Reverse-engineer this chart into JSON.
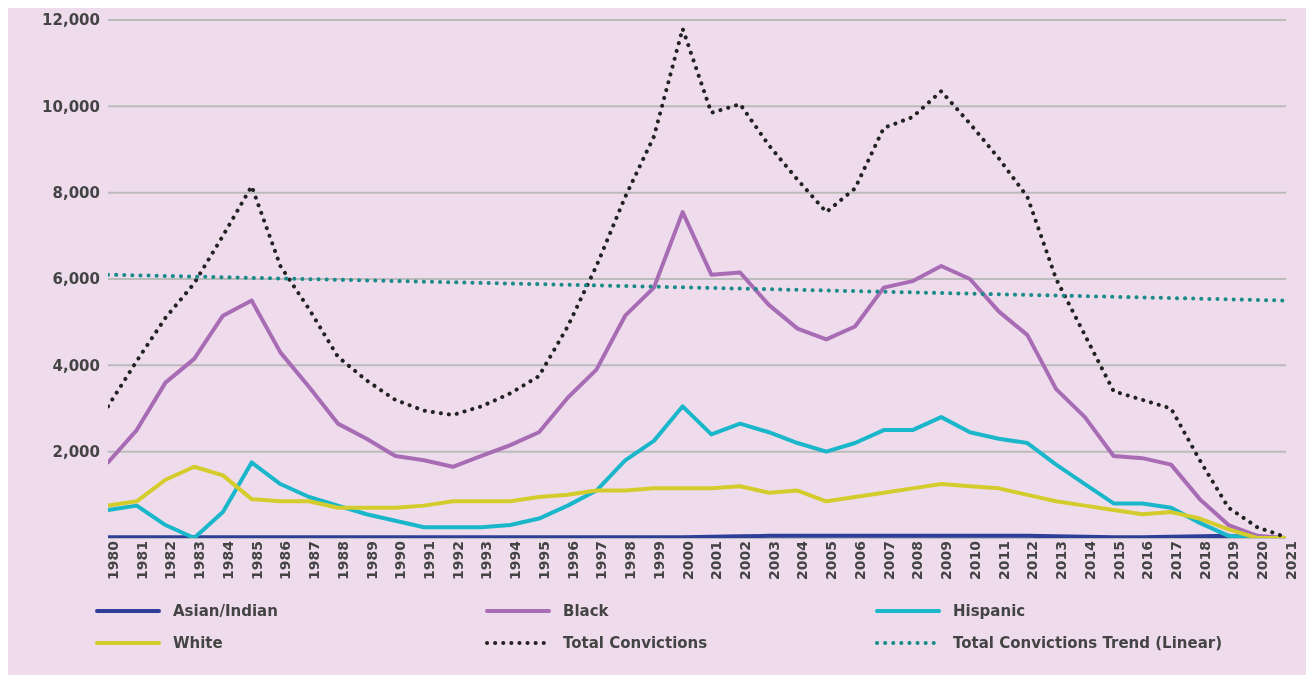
{
  "chart_data": {
    "type": "line",
    "x": [
      1980,
      1981,
      1982,
      1983,
      1984,
      1985,
      1986,
      1987,
      1988,
      1989,
      1990,
      1991,
      1992,
      1993,
      1994,
      1995,
      1996,
      1997,
      1998,
      1999,
      2000,
      2001,
      2002,
      2003,
      2004,
      2005,
      2006,
      2007,
      2008,
      2009,
      2010,
      2011,
      2012,
      2013,
      2014,
      2015,
      2016,
      2017,
      2018,
      2019,
      2020,
      2021
    ],
    "xlim": [
      1980,
      2021
    ],
    "xticks": [
      1980,
      1981,
      1982,
      1983,
      1984,
      1985,
      1986,
      1987,
      1988,
      1989,
      1990,
      1991,
      1992,
      1993,
      1994,
      1995,
      1996,
      1997,
      1998,
      1999,
      2000,
      2001,
      2002,
      2003,
      2004,
      2005,
      2006,
      2007,
      2008,
      2009,
      2010,
      2011,
      2012,
      2013,
      2014,
      2015,
      2016,
      2017,
      2018,
      2019,
      2020,
      2021
    ],
    "ylim": [
      0,
      12000
    ],
    "yticks": [
      {
        "value": 0,
        "label": null
      },
      {
        "value": 2000,
        "label": "2,000"
      },
      {
        "value": 4000,
        "label": "4,000"
      },
      {
        "value": 6000,
        "label": "6,000"
      },
      {
        "value": 8000,
        "label": "8,000"
      },
      {
        "value": 10000,
        "label": "10,000"
      },
      {
        "value": 12000,
        "label": "12,000"
      }
    ],
    "grid": "y",
    "legend": "bottom",
    "marker": "none",
    "series": [
      {
        "name": "Asian/Indian",
        "color": "#2e3f9a",
        "line_style": "solid",
        "values": [
          20,
          20,
          20,
          20,
          20,
          20,
          20,
          20,
          20,
          20,
          20,
          20,
          20,
          20,
          20,
          20,
          20,
          20,
          20,
          20,
          20,
          30,
          40,
          50,
          50,
          50,
          50,
          50,
          50,
          50,
          50,
          50,
          50,
          40,
          30,
          20,
          20,
          30,
          40,
          50,
          0,
          null
        ]
      },
      {
        "name": "Black",
        "color": "#a86cb5",
        "line_style": "solid",
        "values": [
          1750,
          2500,
          3600,
          4150,
          5150,
          5500,
          4300,
          3500,
          2650,
          2300,
          1900,
          1800,
          1650,
          1900,
          2150,
          2450,
          3250,
          3900,
          5150,
          5800,
          7550,
          6100,
          6150,
          5400,
          4850,
          4600,
          4900,
          5800,
          5950,
          6300,
          6000,
          5250,
          4700,
          3450,
          2800,
          1900,
          1850,
          1700,
          900,
          300,
          50,
          0
        ]
      },
      {
        "name": "Hispanic",
        "color": "#1ab6c9",
        "line_style": "solid",
        "values": [
          650,
          750,
          300,
          0,
          600,
          1750,
          1250,
          950,
          750,
          550,
          400,
          250,
          250,
          250,
          300,
          450,
          750,
          1100,
          1800,
          2250,
          3050,
          2400,
          2650,
          2450,
          2200,
          2000,
          2200,
          2500,
          2500,
          2800,
          2450,
          2300,
          2200,
          1700,
          1250,
          800,
          800,
          700,
          350,
          50,
          0,
          null
        ]
      },
      {
        "name": "White",
        "color": "#d4cc2c",
        "line_style": "solid",
        "values": [
          750,
          850,
          1350,
          1650,
          1450,
          900,
          850,
          850,
          700,
          700,
          700,
          750,
          850,
          850,
          850,
          950,
          1000,
          1100,
          1100,
          1150,
          1150,
          1150,
          1200,
          1050,
          1100,
          850,
          950,
          1050,
          1150,
          1250,
          1200,
          1150,
          1000,
          850,
          750,
          650,
          550,
          600,
          450,
          200,
          0,
          0
        ]
      },
      {
        "name": "Total Convictions",
        "color": "#222222",
        "line_style": "dotted",
        "values": [
          3050,
          4100,
          5100,
          5900,
          7000,
          8150,
          6300,
          5300,
          4200,
          3650,
          3200,
          2950,
          2850,
          3050,
          3350,
          3750,
          4900,
          6300,
          7900,
          9300,
          11800,
          9850,
          10050,
          9100,
          8300,
          7550,
          8100,
          9500,
          9750,
          10350,
          9600,
          8800,
          7900,
          6000,
          4700,
          3400,
          3200,
          3000,
          1800,
          700,
          250,
          20
        ]
      },
      {
        "name": "Total Convictions Trend (Linear)",
        "color": "#1a8a8a",
        "line_style": "dotted",
        "x": [
          1980,
          2021
        ],
        "values": [
          6100,
          5500
        ]
      }
    ]
  }
}
